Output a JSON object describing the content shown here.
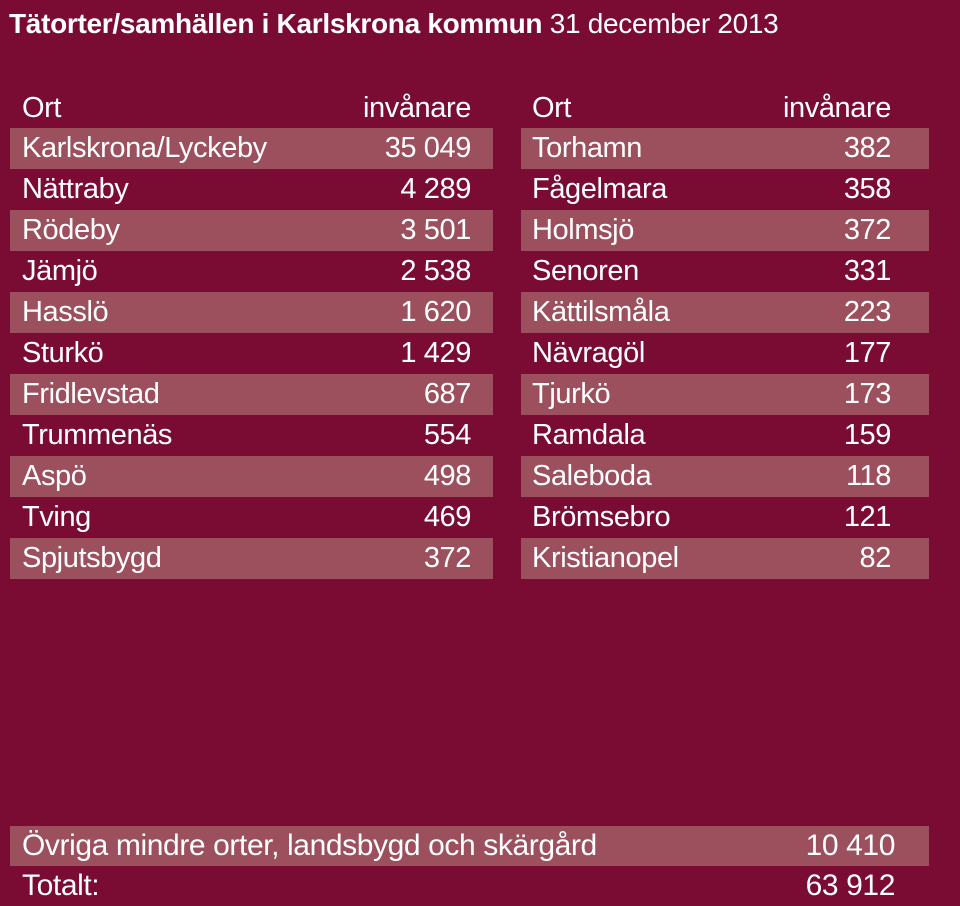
{
  "title": {
    "bold": "Tätorter/samhällen i Karlskrona kommun",
    "normal": "31 december 2013"
  },
  "left_table": {
    "header": {
      "ort": "Ort",
      "invanare": "invånare"
    },
    "rows": [
      {
        "ort": "Karlskrona/Lyckeby",
        "invanare": "35 049"
      },
      {
        "ort": "Nättraby",
        "invanare": "4 289"
      },
      {
        "ort": "Rödeby",
        "invanare": "3 501"
      },
      {
        "ort": "Jämjö",
        "invanare": "2 538"
      },
      {
        "ort": "Hasslö",
        "invanare": "1 620"
      },
      {
        "ort": "Sturkö",
        "invanare": "1 429"
      },
      {
        "ort": "Fridlevstad",
        "invanare": "687"
      },
      {
        "ort": "Trummenäs",
        "invanare": "554"
      },
      {
        "ort": "Aspö",
        "invanare": "498"
      },
      {
        "ort": "Tving",
        "invanare": "469"
      },
      {
        "ort": "Spjutsbygd",
        "invanare": "372"
      }
    ]
  },
  "right_table": {
    "header": {
      "ort": "Ort",
      "invanare": "invånare"
    },
    "rows": [
      {
        "ort": "Torhamn",
        "invanare": "382"
      },
      {
        "ort": "Fågelmara",
        "invanare": "358"
      },
      {
        "ort": "Holmsjö",
        "invanare": "372"
      },
      {
        "ort": "Senoren",
        "invanare": "331"
      },
      {
        "ort": "Kättilsmåla",
        "invanare": "223"
      },
      {
        "ort": "Nävragöl",
        "invanare": "177"
      },
      {
        "ort": "Tjurkö",
        "invanare": "173"
      },
      {
        "ort": "Ramdala",
        "invanare": "159"
      },
      {
        "ort": "Saleboda",
        "invanare": "118"
      },
      {
        "ort": "Brömsebro",
        "invanare": "121"
      },
      {
        "ort": "Kristianopel",
        "invanare": "82"
      }
    ]
  },
  "footer": {
    "other": {
      "label": "Övriga mindre orter, landsbygd och skärgård",
      "value": "10 410"
    },
    "total": {
      "label": "Totalt:",
      "value": "63 912"
    }
  },
  "colors": {
    "background": "#7a0c33",
    "shaded_row": "#9c505e",
    "text": "#ffffff"
  }
}
